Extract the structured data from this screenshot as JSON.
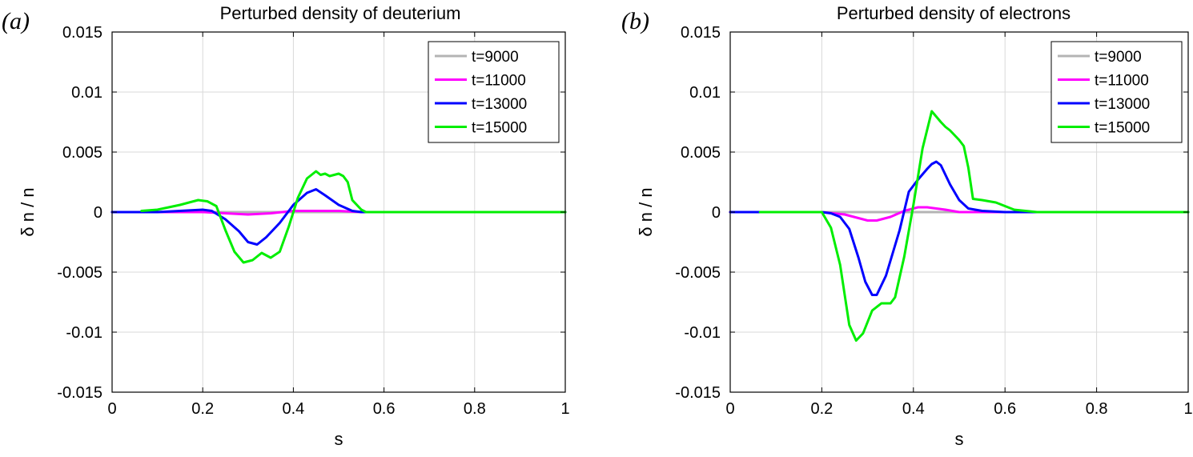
{
  "chart_data": [
    {
      "type": "line",
      "panel_label": "(a)",
      "title": "Perturbed density of deuterium",
      "xlabel": "s",
      "ylabel": "δ n / n",
      "xlim": [
        0,
        1
      ],
      "ylim": [
        -0.015,
        0.015
      ],
      "xticks": [
        0,
        0.2,
        0.4,
        0.6,
        0.8,
        1
      ],
      "xtick_labels": [
        "0",
        "0.2",
        "0.4",
        "0.6",
        "0.8",
        "1"
      ],
      "yticks": [
        0.015,
        0.01,
        0.005,
        0,
        -0.005,
        -0.01,
        -0.015
      ],
      "ytick_labels": [
        "0.015",
        "0.01",
        "0.005",
        "0",
        "-0.005",
        "-0.01",
        "-0.015"
      ],
      "grid": true,
      "legend_position": "top-right",
      "series": [
        {
          "name": "t=9000",
          "color": "#b4b4b4",
          "x": [
            0,
            0.2,
            0.4,
            0.6,
            0.8,
            1.0
          ],
          "y": [
            0,
            0,
            0,
            0,
            0,
            0
          ]
        },
        {
          "name": "t=11000",
          "color": "#ff00ff",
          "x": [
            0,
            0.2,
            0.25,
            0.3,
            0.35,
            0.4,
            0.45,
            0.5,
            0.55,
            1.0
          ],
          "y": [
            0,
            0,
            -0.0001,
            -0.0002,
            -0.0001,
            0.0001,
            0.0001,
            0.0001,
            0,
            0
          ]
        },
        {
          "name": "t=13000",
          "color": "#0000ff",
          "x": [
            0,
            0.1,
            0.15,
            0.2,
            0.22,
            0.25,
            0.28,
            0.3,
            0.32,
            0.34,
            0.37,
            0.4,
            0.43,
            0.45,
            0.47,
            0.5,
            0.53,
            0.55,
            1.0
          ],
          "y": [
            0,
            0,
            0.0001,
            0.0002,
            0.0001,
            -0.0006,
            -0.0016,
            -0.0025,
            -0.0027,
            -0.0021,
            -0.0009,
            0.0006,
            0.0016,
            0.0019,
            0.0014,
            0.0006,
            0.0001,
            0,
            0
          ]
        },
        {
          "name": "t=15000",
          "color": "#00ee00",
          "x": [
            0.065,
            0.1,
            0.15,
            0.19,
            0.21,
            0.23,
            0.25,
            0.27,
            0.29,
            0.31,
            0.33,
            0.35,
            0.37,
            0.39,
            0.41,
            0.43,
            0.45,
            0.46,
            0.47,
            0.48,
            0.5,
            0.51,
            0.52,
            0.53,
            0.55,
            0.56,
            0.6,
            0.7,
            1.0
          ],
          "y": [
            0.0001,
            0.0002,
            0.0006,
            0.001,
            0.0009,
            0.0005,
            -0.0015,
            -0.0033,
            -0.0042,
            -0.004,
            -0.0034,
            -0.0038,
            -0.0033,
            -0.0012,
            0.0012,
            0.0028,
            0.0034,
            0.0031,
            0.0032,
            0.003,
            0.0032,
            0.003,
            0.0025,
            0.001,
            0.0002,
            0,
            0,
            0,
            0
          ]
        }
      ]
    },
    {
      "type": "line",
      "panel_label": "(b)",
      "title": "Perturbed density of electrons",
      "xlabel": "s",
      "ylabel": "δ n / n",
      "xlim": [
        0,
        1
      ],
      "ylim": [
        -0.015,
        0.015
      ],
      "xticks": [
        0,
        0.2,
        0.4,
        0.6,
        0.8,
        1
      ],
      "xtick_labels": [
        "0",
        "0.2",
        "0.4",
        "0.6",
        "0.8",
        "1"
      ],
      "yticks": [
        0.015,
        0.01,
        0.005,
        0,
        -0.005,
        -0.01,
        -0.015
      ],
      "ytick_labels": [
        "0.015",
        "0.01",
        "0.005",
        "0",
        "-0.005",
        "-0.01",
        "-0.015"
      ],
      "grid": true,
      "legend_position": "top-right",
      "series": [
        {
          "name": "t=9000",
          "color": "#b4b4b4",
          "x": [
            0,
            0.2,
            0.4,
            0.6,
            0.8,
            1.0
          ],
          "y": [
            0,
            0,
            0,
            0,
            0,
            0
          ]
        },
        {
          "name": "t=11000",
          "color": "#ff00ff",
          "x": [
            0,
            0.2,
            0.25,
            0.28,
            0.3,
            0.32,
            0.35,
            0.38,
            0.41,
            0.43,
            0.47,
            0.5,
            0.55,
            1.0
          ],
          "y": [
            0,
            0,
            -0.0002,
            -0.0005,
            -0.0007,
            -0.0007,
            -0.0004,
            0.0001,
            0.0004,
            0.0004,
            0.0002,
            0,
            0,
            0
          ]
        },
        {
          "name": "t=13000",
          "color": "#0000ff",
          "x": [
            0,
            0.2,
            0.22,
            0.24,
            0.26,
            0.28,
            0.295,
            0.31,
            0.32,
            0.34,
            0.37,
            0.39,
            0.41,
            0.43,
            0.44,
            0.45,
            0.46,
            0.48,
            0.5,
            0.52,
            0.55,
            0.6,
            1.0
          ],
          "y": [
            0,
            0,
            -0.0001,
            -0.0004,
            -0.0014,
            -0.0038,
            -0.0058,
            -0.0069,
            -0.0069,
            -0.0053,
            -0.0015,
            0.0017,
            0.0027,
            0.0036,
            0.004,
            0.0042,
            0.0039,
            0.0023,
            0.001,
            0.0003,
            0.0001,
            0,
            0
          ]
        },
        {
          "name": "t=15000",
          "color": "#00ee00",
          "x": [
            0.065,
            0.2,
            0.22,
            0.24,
            0.26,
            0.275,
            0.29,
            0.31,
            0.33,
            0.35,
            0.36,
            0.38,
            0.4,
            0.42,
            0.44,
            0.46,
            0.47,
            0.48,
            0.5,
            0.51,
            0.52,
            0.53,
            0.55,
            0.58,
            0.62,
            0.67,
            0.7,
            1.0
          ],
          "y": [
            0,
            0,
            -0.0013,
            -0.0044,
            -0.0094,
            -0.0107,
            -0.0101,
            -0.0082,
            -0.0076,
            -0.0076,
            -0.0071,
            -0.0037,
            0.0006,
            0.0053,
            0.0084,
            0.0075,
            0.0071,
            0.0068,
            0.006,
            0.0055,
            0.0037,
            0.0011,
            0.001,
            0.0008,
            0.0002,
            0,
            0,
            0
          ]
        }
      ]
    }
  ]
}
